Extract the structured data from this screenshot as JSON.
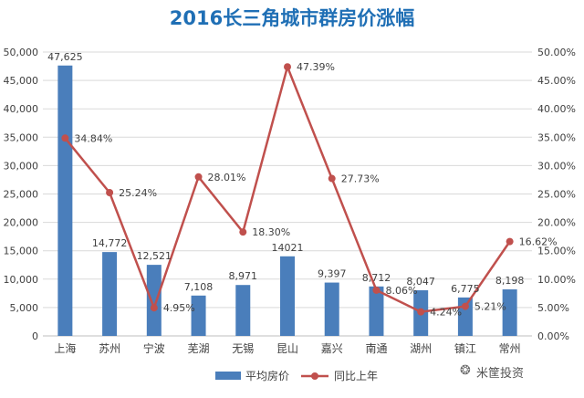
{
  "title": "2016长三角城市群房价涨幅",
  "watermark": "米筐投资",
  "chart_data": {
    "type": "bar",
    "categories": [
      "上海",
      "苏州",
      "宁波",
      "芜湖",
      "无锡",
      "昆山",
      "嘉兴",
      "南通",
      "湖州",
      "镇江",
      "常州"
    ],
    "series": [
      {
        "name": "平均房价",
        "type": "bar",
        "axis": "left",
        "values": [
          47625,
          14772,
          12521,
          7108,
          8971,
          14021,
          9397,
          8712,
          8047,
          6775,
          8198
        ],
        "labels": [
          "47,625",
          "14,772",
          "12,521",
          "7,108",
          "8,971",
          "14021",
          "9,397",
          "8,712",
          "8,047",
          "6,775",
          "8,198"
        ],
        "color": "#4a7ebb"
      },
      {
        "name": "同比上年",
        "type": "line",
        "axis": "right",
        "values": [
          34.84,
          25.24,
          4.95,
          28.01,
          18.3,
          47.39,
          27.73,
          8.06,
          4.24,
          5.21,
          16.62
        ],
        "labels": [
          "34.84%",
          "25.24%",
          "4.95%",
          "28.01%",
          "18.30%",
          "47.39%",
          "27.73%",
          "8.06%",
          "4.24%",
          "5.21%",
          "16.62%"
        ],
        "color": "#c0504d"
      }
    ],
    "y_left": {
      "lim": [
        0,
        50000
      ],
      "ticks": [
        "0",
        "5,000",
        "10,000",
        "15,000",
        "20,000",
        "25,000",
        "30,000",
        "35,000",
        "40,000",
        "45,000",
        "50,000"
      ]
    },
    "y_right": {
      "lim": [
        0,
        50
      ],
      "ticks": [
        "0.00%",
        "5.00%",
        "10.00%",
        "15.00%",
        "20.00%",
        "25.00%",
        "30.00%",
        "35.00%",
        "40.00%",
        "45.00%",
        "50.00%"
      ]
    },
    "grid": true,
    "legend_position": "bottom"
  }
}
